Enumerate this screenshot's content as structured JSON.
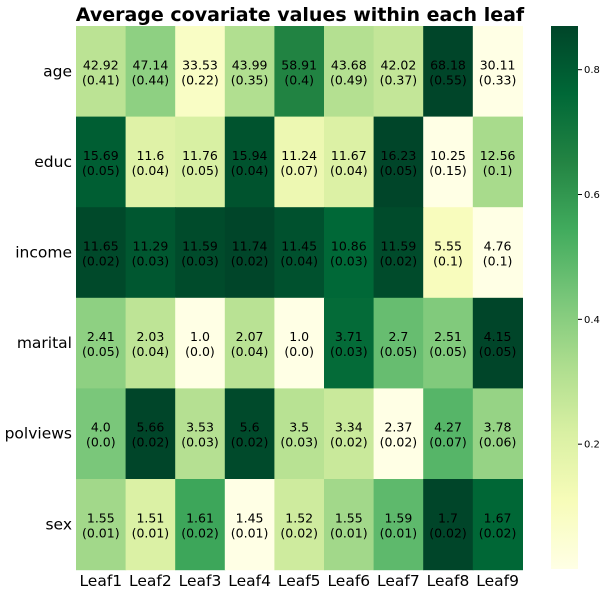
{
  "chart_data": {
    "type": "heatmap",
    "title": "Average covariate values within each leaf",
    "columns": [
      "Leaf1",
      "Leaf2",
      "Leaf3",
      "Leaf4",
      "Leaf5",
      "Leaf6",
      "Leaf7",
      "Leaf8",
      "Leaf9"
    ],
    "rows": [
      "age",
      "educ",
      "income",
      "marital",
      "polviews",
      "sex"
    ],
    "values": [
      [
        42.92,
        47.14,
        33.53,
        43.99,
        58.91,
        43.68,
        42.02,
        68.18,
        30.11
      ],
      [
        15.69,
        11.6,
        11.76,
        15.94,
        11.24,
        11.67,
        16.23,
        10.25,
        12.56
      ],
      [
        11.65,
        11.29,
        11.59,
        11.74,
        11.45,
        10.86,
        11.59,
        5.55,
        4.76
      ],
      [
        2.41,
        2.03,
        1.0,
        2.07,
        1.0,
        3.71,
        2.7,
        2.51,
        4.15
      ],
      [
        4.0,
        5.66,
        3.53,
        5.6,
        3.5,
        3.34,
        2.37,
        4.27,
        3.78
      ],
      [
        1.55,
        1.51,
        1.61,
        1.45,
        1.52,
        1.55,
        1.59,
        1.7,
        1.67
      ]
    ],
    "std_errors": [
      [
        0.41,
        0.44,
        0.22,
        0.35,
        0.4,
        0.49,
        0.37,
        0.55,
        0.33
      ],
      [
        0.05,
        0.04,
        0.05,
        0.04,
        0.07,
        0.04,
        0.05,
        0.15,
        0.1
      ],
      [
        0.02,
        0.03,
        0.03,
        0.02,
        0.04,
        0.03,
        0.02,
        0.1,
        0.1
      ],
      [
        0.05,
        0.04,
        0.0,
        0.04,
        0.0,
        0.03,
        0.05,
        0.05,
        0.05
      ],
      [
        0.0,
        0.02,
        0.03,
        0.02,
        0.03,
        0.02,
        0.02,
        0.07,
        0.06
      ],
      [
        0.01,
        0.01,
        0.02,
        0.01,
        0.02,
        0.01,
        0.01,
        0.02,
        0.02
      ]
    ],
    "value_labels": [
      [
        "42.92",
        "47.14",
        "33.53",
        "43.99",
        "58.91",
        "43.68",
        "42.02",
        "68.18",
        "30.11"
      ],
      [
        "15.69",
        "11.6",
        "11.76",
        "15.94",
        "11.24",
        "11.67",
        "16.23",
        "10.25",
        "12.56"
      ],
      [
        "11.65",
        "11.29",
        "11.59",
        "11.74",
        "11.45",
        "10.86",
        "11.59",
        "5.55",
        "4.76"
      ],
      [
        "2.41",
        "2.03",
        "1.0",
        "2.07",
        "1.0",
        "3.71",
        "2.7",
        "2.51",
        "4.15"
      ],
      [
        "4.0",
        "5.66",
        "3.53",
        "5.6",
        "3.5",
        "3.34",
        "2.37",
        "4.27",
        "3.78"
      ],
      [
        "1.55",
        "1.51",
        "1.61",
        "1.45",
        "1.52",
        "1.55",
        "1.59",
        "1.7",
        "1.67"
      ]
    ],
    "se_labels": [
      [
        "(0.41)",
        "(0.44)",
        "(0.22)",
        "(0.35)",
        "(0.4)",
        "(0.49)",
        "(0.37)",
        "(0.55)",
        "(0.33)"
      ],
      [
        "(0.05)",
        "(0.04)",
        "(0.05)",
        "(0.04)",
        "(0.07)",
        "(0.04)",
        "(0.05)",
        "(0.15)",
        "(0.1)"
      ],
      [
        "(0.02)",
        "(0.03)",
        "(0.03)",
        "(0.02)",
        "(0.04)",
        "(0.03)",
        "(0.02)",
        "(0.1)",
        "(0.1)"
      ],
      [
        "(0.05)",
        "(0.04)",
        "(0.0)",
        "(0.04)",
        "(0.0)",
        "(0.03)",
        "(0.05)",
        "(0.05)",
        "(0.05)"
      ],
      [
        "(0.0)",
        "(0.02)",
        "(0.03)",
        "(0.02)",
        "(0.03)",
        "(0.02)",
        "(0.02)",
        "(0.07)",
        "(0.06)"
      ],
      [
        "(0.01)",
        "(0.01)",
        "(0.02)",
        "(0.01)",
        "(0.02)",
        "(0.01)",
        "(0.01)",
        "(0.02)",
        "(0.02)"
      ]
    ],
    "colorbar": {
      "ticks": [
        "0.2",
        "0.4",
        "0.6",
        "0.8"
      ],
      "tick_values": [
        0.2,
        0.4,
        0.6,
        0.8
      ],
      "range": [
        0.0,
        0.87
      ]
    },
    "colormap": [
      "#ffffe5",
      "#f7fcb9",
      "#d9f0a3",
      "#addd8e",
      "#78c679",
      "#41ab5d",
      "#238443",
      "#006837",
      "#004529"
    ],
    "grid": false
  }
}
